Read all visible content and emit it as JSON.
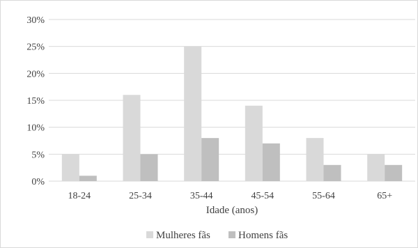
{
  "chart_data": {
    "type": "bar",
    "title": "",
    "xlabel": "Idade (anos)",
    "ylabel": "",
    "categories": [
      "18-24",
      "25-34",
      "35-44",
      "45-54",
      "55-64",
      "65+"
    ],
    "series": [
      {
        "name": "Mulheres fãs",
        "values": [
          5,
          16,
          25,
          14,
          8,
          5
        ],
        "color": "#d9d9d9"
      },
      {
        "name": "Homens fãs",
        "values": [
          1,
          5,
          8,
          7,
          3,
          3
        ],
        "color": "#bfbfbf"
      }
    ],
    "ylim": [
      0,
      30
    ],
    "yticks": [
      0,
      5,
      10,
      15,
      20,
      25,
      30
    ],
    "ytick_suffix": "%",
    "gridlines": true,
    "legend_position": "bottom",
    "gridline_color": "#d9d9d9",
    "axis_color": "#d9d9d9"
  }
}
